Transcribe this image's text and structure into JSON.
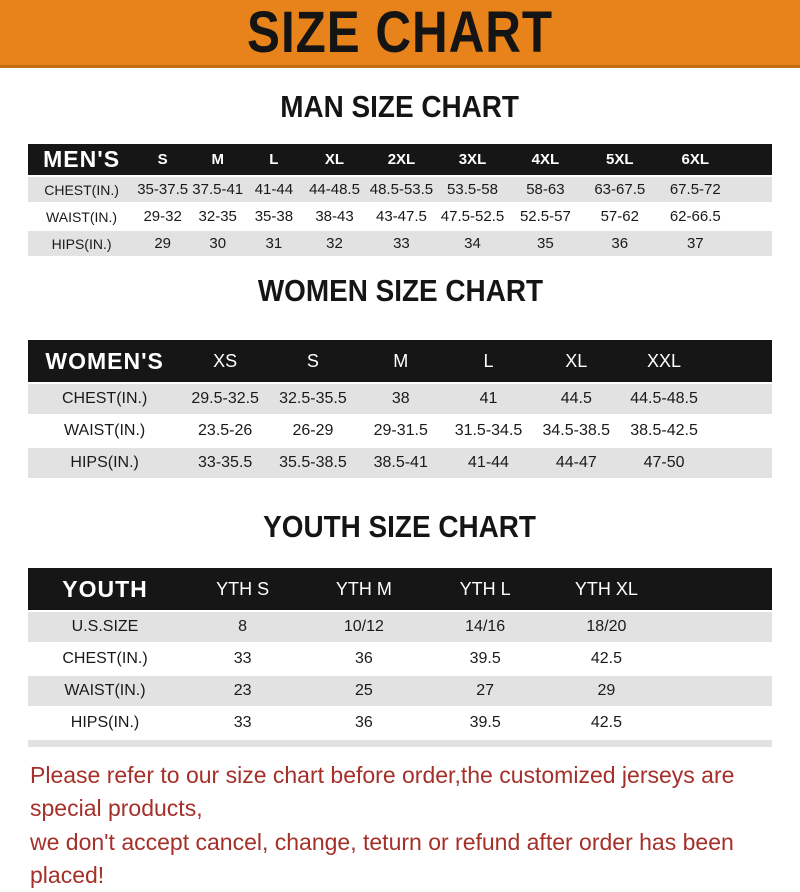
{
  "banner": {
    "title": "SIZE CHART",
    "bg_color": "#E8821A",
    "border_color": "#C36E15",
    "text_color": "#141414"
  },
  "men": {
    "title": "MAN SIZE CHART",
    "label": "MEN'S",
    "sizes": [
      "S",
      "M",
      "L",
      "XL",
      "2XL",
      "3XL",
      "4XL",
      "5XL",
      "6XL"
    ],
    "rows": [
      {
        "label": "CHEST(IN.)",
        "values": [
          "35-37.5",
          "37.5-41",
          "41-44",
          "44-48.5",
          "48.5-53.5",
          "53.5-58",
          "58-63",
          "63-67.5",
          "67.5-72"
        ]
      },
      {
        "label": "WAIST(IN.)",
        "values": [
          "29-32",
          "32-35",
          "35-38",
          "38-43",
          "43-47.5",
          "47.5-52.5",
          "52.5-57",
          "57-62",
          "62-66.5"
        ]
      },
      {
        "label": "HIPS(IN.)",
        "values": [
          "29",
          "30",
          "31",
          "32",
          "33",
          "34",
          "35",
          "36",
          "37"
        ]
      }
    ]
  },
  "women": {
    "title": "WOMEN SIZE CHART",
    "label": "WOMEN'S",
    "sizes": [
      "XS",
      "S",
      "M",
      "L",
      "XL",
      "XXL"
    ],
    "rows": [
      {
        "label": "CHEST(IN.)",
        "values": [
          "29.5-32.5",
          "32.5-35.5",
          "38",
          "41",
          "44.5",
          "44.5-48.5"
        ]
      },
      {
        "label": "WAIST(IN.)",
        "values": [
          "23.5-26",
          "26-29",
          "29-31.5",
          "31.5-34.5",
          "34.5-38.5",
          "38.5-42.5"
        ]
      },
      {
        "label": "HIPS(IN.)",
        "values": [
          "33-35.5",
          "35.5-38.5",
          "38.5-41",
          "41-44",
          "44-47",
          "47-50"
        ]
      }
    ]
  },
  "youth": {
    "title": "YOUTH SIZE CHART",
    "label": "YOUTH",
    "sizes": [
      "YTH S",
      "YTH M",
      "YTH L",
      "YTH XL"
    ],
    "rows": [
      {
        "label": "U.S.SIZE",
        "values": [
          "8",
          "10/12",
          "14/16",
          "18/20"
        ]
      },
      {
        "label": "CHEST(IN.)",
        "values": [
          "33",
          "36",
          "39.5",
          "42.5"
        ]
      },
      {
        "label": "WAIST(IN.)",
        "values": [
          "23",
          "25",
          "27",
          "29"
        ]
      },
      {
        "label": "HIPS(IN.)",
        "values": [
          "33",
          "36",
          "39.5",
          "42.5"
        ]
      }
    ]
  },
  "footer": {
    "line1": "Please refer to our size chart before order,the customized jerseys are special products,",
    "line2": "we don't accept cancel, change, teturn or refund after order has been placed!",
    "text_color": "#A5302A"
  },
  "colors": {
    "stripe_gray": "#E2E2E2",
    "bar_black": "#161616"
  }
}
